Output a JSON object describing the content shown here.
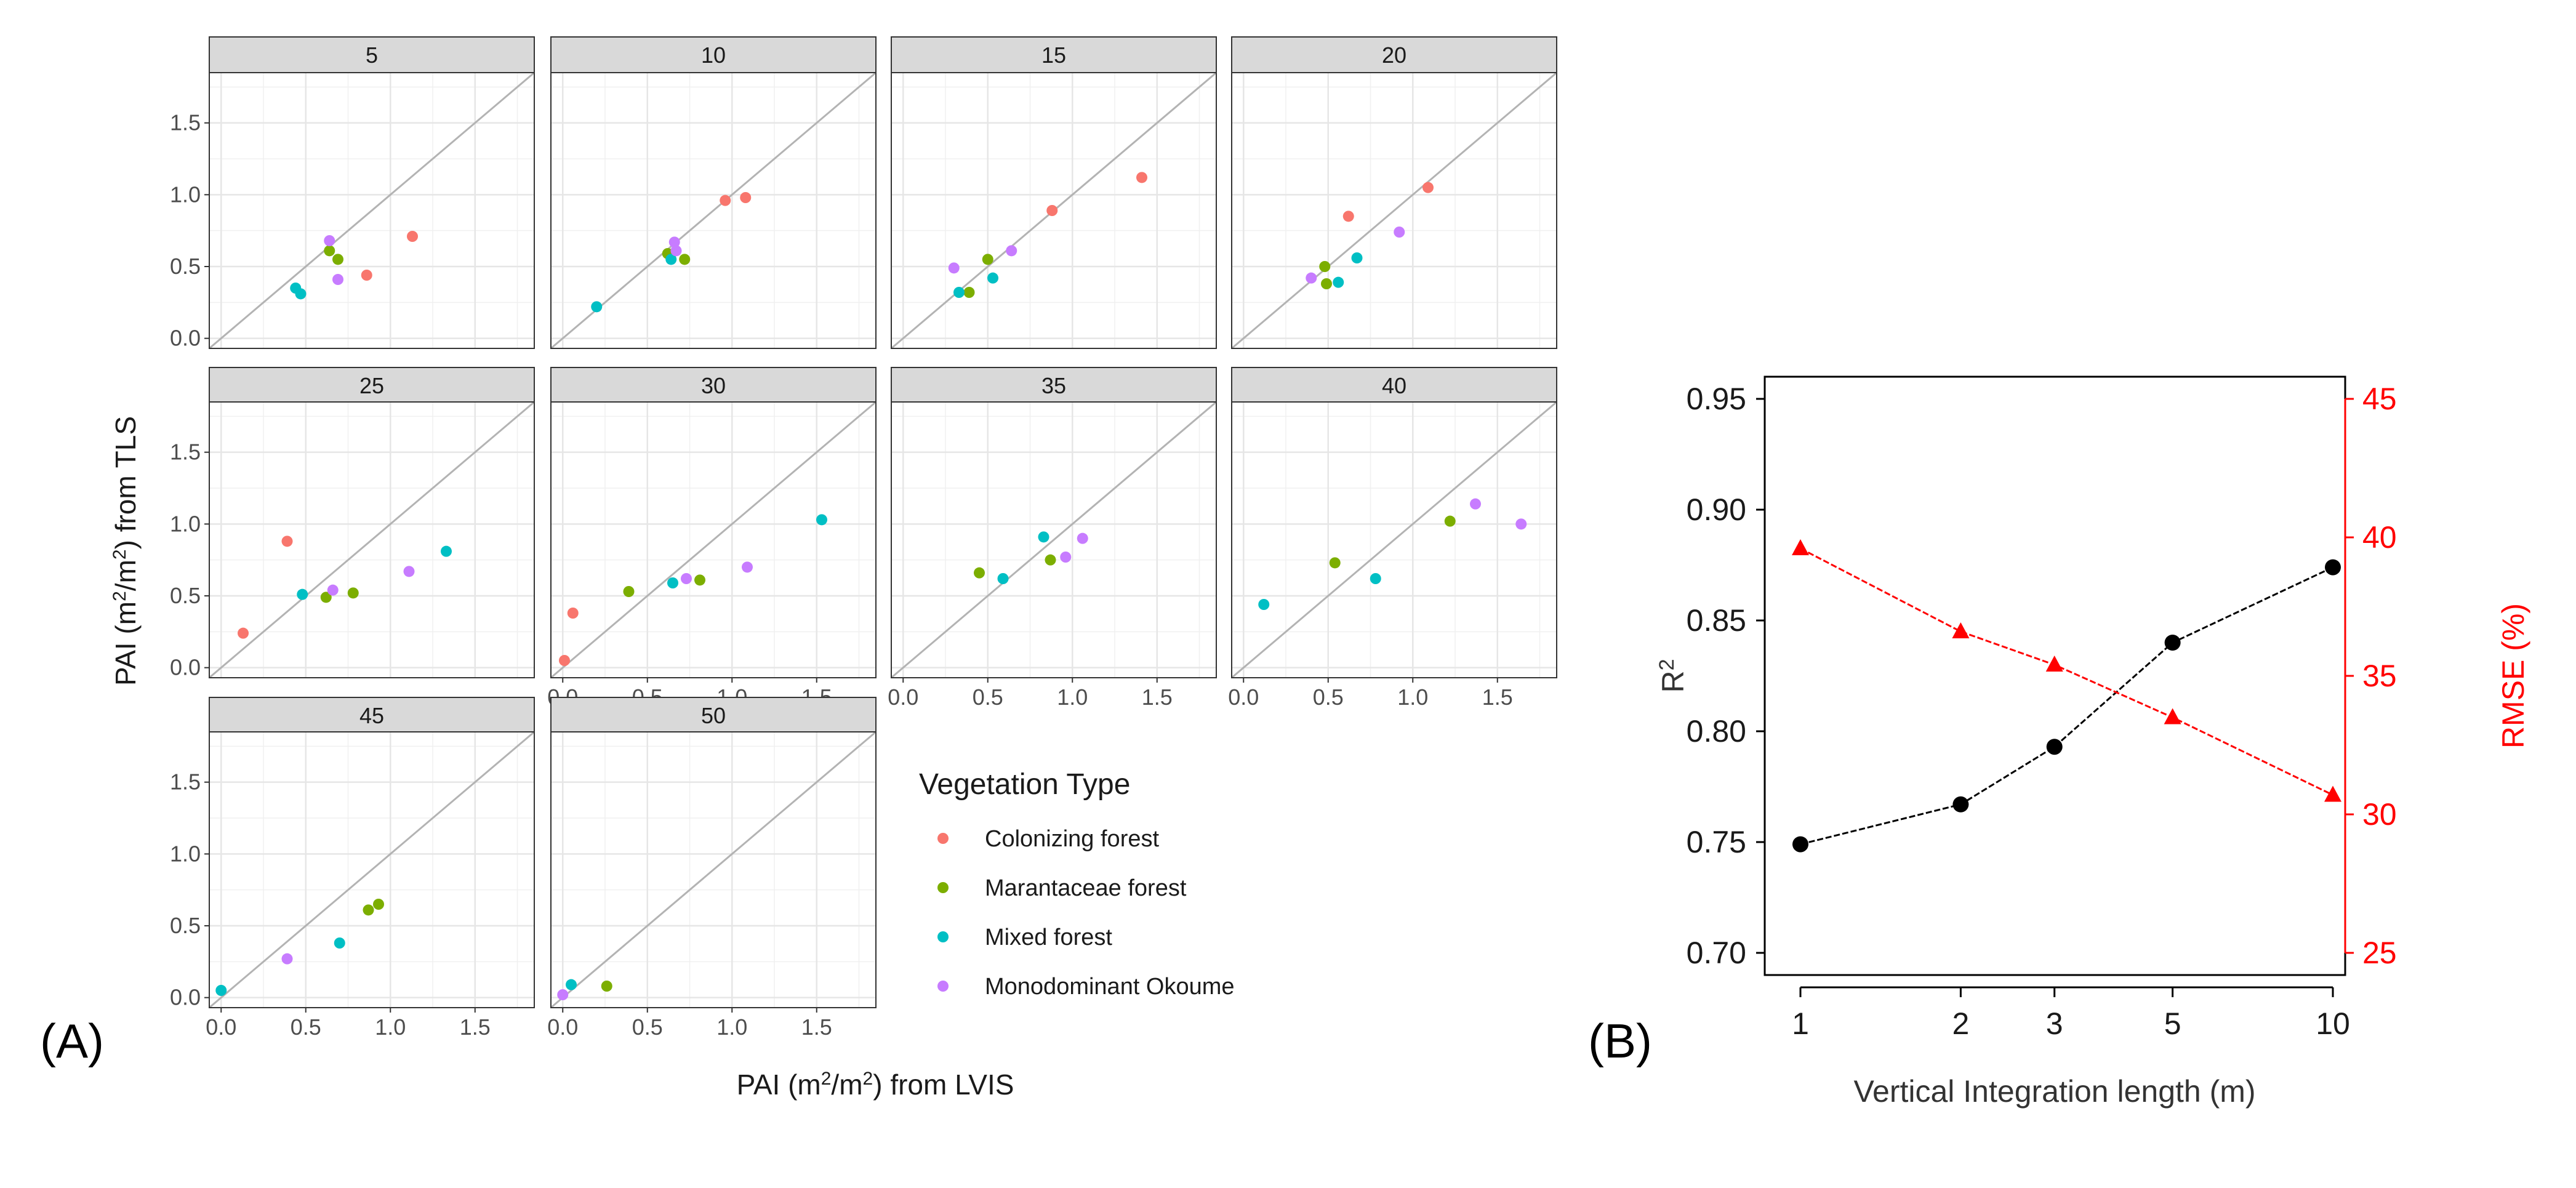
{
  "labels": {
    "panel_a": "(A)",
    "panel_b": "(B)"
  },
  "colors": {
    "Colonizing forest": "#F8766D",
    "Marantaceae forest": "#7CAE00",
    "Mixed forest": "#00BFC4",
    "Monodominant Okoume": "#C77CFF",
    "r2_series": "#000000",
    "rmse_series": "#ff0000"
  },
  "chart_data": [
    {
      "type": "scatter",
      "xlabel_parts": [
        "PAI (m",
        "2",
        "/m",
        "2",
        ") from LVIS"
      ],
      "ylabel_parts": [
        "PAI (m",
        "2",
        "/m",
        "2",
        ") from TLS"
      ],
      "xlim": [
        -0.07,
        1.85
      ],
      "ylim": [
        -0.07,
        1.85
      ],
      "x_ticks": [
        "0.0",
        "0.5",
        "1.0",
        "1.5"
      ],
      "y_ticks": [
        "0.0",
        "0.5",
        "1.0",
        "1.5"
      ],
      "reference_line": "1:1",
      "grid": true,
      "legend": {
        "title": "Vegetation Type",
        "entries": [
          "Colonizing forest",
          "Marantaceae forest",
          "Mixed forest",
          "Monodominant Okoume"
        ]
      },
      "facets": [
        {
          "label": "5",
          "points": [
            {
              "x": 1.13,
              "y": 0.71,
              "type": "Colonizing forest"
            },
            {
              "x": 0.86,
              "y": 0.44,
              "type": "Colonizing forest"
            },
            {
              "x": 0.64,
              "y": 0.61,
              "type": "Marantaceae forest"
            },
            {
              "x": 0.69,
              "y": 0.55,
              "type": "Marantaceae forest"
            },
            {
              "x": 0.44,
              "y": 0.35,
              "type": "Mixed forest"
            },
            {
              "x": 0.47,
              "y": 0.31,
              "type": "Mixed forest"
            },
            {
              "x": 0.64,
              "y": 0.68,
              "type": "Monodominant Okoume"
            },
            {
              "x": 0.69,
              "y": 0.41,
              "type": "Monodominant Okoume"
            }
          ]
        },
        {
          "label": "10",
          "points": [
            {
              "x": 0.96,
              "y": 0.96,
              "type": "Colonizing forest"
            },
            {
              "x": 1.08,
              "y": 0.98,
              "type": "Colonizing forest"
            },
            {
              "x": 0.62,
              "y": 0.59,
              "type": "Marantaceae forest"
            },
            {
              "x": 0.72,
              "y": 0.55,
              "type": "Marantaceae forest"
            },
            {
              "x": 0.2,
              "y": 0.22,
              "type": "Mixed forest"
            },
            {
              "x": 0.64,
              "y": 0.55,
              "type": "Mixed forest"
            },
            {
              "x": 0.66,
              "y": 0.67,
              "type": "Monodominant Okoume"
            },
            {
              "x": 0.67,
              "y": 0.61,
              "type": "Monodominant Okoume"
            }
          ]
        },
        {
          "label": "15",
          "points": [
            {
              "x": 0.88,
              "y": 0.89,
              "type": "Colonizing forest"
            },
            {
              "x": 1.41,
              "y": 1.12,
              "type": "Colonizing forest"
            },
            {
              "x": 0.5,
              "y": 0.55,
              "type": "Marantaceae forest"
            },
            {
              "x": 0.39,
              "y": 0.32,
              "type": "Marantaceae forest"
            },
            {
              "x": 0.33,
              "y": 0.32,
              "type": "Mixed forest"
            },
            {
              "x": 0.53,
              "y": 0.42,
              "type": "Mixed forest"
            },
            {
              "x": 0.3,
              "y": 0.49,
              "type": "Monodominant Okoume"
            },
            {
              "x": 0.64,
              "y": 0.61,
              "type": "Monodominant Okoume"
            }
          ]
        },
        {
          "label": "20",
          "points": [
            {
              "x": 0.62,
              "y": 0.85,
              "type": "Colonizing forest"
            },
            {
              "x": 1.09,
              "y": 1.05,
              "type": "Colonizing forest"
            },
            {
              "x": 0.48,
              "y": 0.5,
              "type": "Marantaceae forest"
            },
            {
              "x": 0.49,
              "y": 0.38,
              "type": "Marantaceae forest"
            },
            {
              "x": 0.56,
              "y": 0.39,
              "type": "Mixed forest"
            },
            {
              "x": 0.67,
              "y": 0.56,
              "type": "Mixed forest"
            },
            {
              "x": 0.4,
              "y": 0.42,
              "type": "Monodominant Okoume"
            },
            {
              "x": 0.92,
              "y": 0.74,
              "type": "Monodominant Okoume"
            }
          ]
        },
        {
          "label": "25",
          "points": [
            {
              "x": 0.39,
              "y": 0.88,
              "type": "Colonizing forest"
            },
            {
              "x": 0.13,
              "y": 0.24,
              "type": "Colonizing forest"
            },
            {
              "x": 0.62,
              "y": 0.49,
              "type": "Marantaceae forest"
            },
            {
              "x": 0.78,
              "y": 0.52,
              "type": "Marantaceae forest"
            },
            {
              "x": 0.48,
              "y": 0.51,
              "type": "Mixed forest"
            },
            {
              "x": 1.33,
              "y": 0.81,
              "type": "Mixed forest"
            },
            {
              "x": 0.66,
              "y": 0.54,
              "type": "Monodominant Okoume"
            },
            {
              "x": 1.11,
              "y": 0.67,
              "type": "Monodominant Okoume"
            }
          ]
        },
        {
          "label": "30",
          "points": [
            {
              "x": 0.01,
              "y": 0.05,
              "type": "Colonizing forest"
            },
            {
              "x": 0.06,
              "y": 0.38,
              "type": "Colonizing forest"
            },
            {
              "x": 0.39,
              "y": 0.53,
              "type": "Marantaceae forest"
            },
            {
              "x": 0.81,
              "y": 0.61,
              "type": "Marantaceae forest"
            },
            {
              "x": 0.65,
              "y": 0.59,
              "type": "Mixed forest"
            },
            {
              "x": 1.53,
              "y": 1.03,
              "type": "Mixed forest"
            },
            {
              "x": 0.73,
              "y": 0.62,
              "type": "Monodominant Okoume"
            },
            {
              "x": 1.09,
              "y": 0.7,
              "type": "Monodominant Okoume"
            }
          ]
        },
        {
          "label": "35",
          "points": [
            {
              "x": 0.45,
              "y": 0.66,
              "type": "Marantaceae forest"
            },
            {
              "x": 0.87,
              "y": 0.75,
              "type": "Marantaceae forest"
            },
            {
              "x": 0.59,
              "y": 0.62,
              "type": "Mixed forest"
            },
            {
              "x": 0.83,
              "y": 0.91,
              "type": "Mixed forest"
            },
            {
              "x": 0.96,
              "y": 0.77,
              "type": "Monodominant Okoume"
            },
            {
              "x": 1.06,
              "y": 0.9,
              "type": "Monodominant Okoume"
            }
          ]
        },
        {
          "label": "40",
          "points": [
            {
              "x": 0.54,
              "y": 0.73,
              "type": "Marantaceae forest"
            },
            {
              "x": 1.22,
              "y": 1.02,
              "type": "Marantaceae forest"
            },
            {
              "x": 0.12,
              "y": 0.44,
              "type": "Mixed forest"
            },
            {
              "x": 0.78,
              "y": 0.62,
              "type": "Mixed forest"
            },
            {
              "x": 1.37,
              "y": 1.14,
              "type": "Monodominant Okoume"
            },
            {
              "x": 1.64,
              "y": 1.0,
              "type": "Monodominant Okoume"
            }
          ]
        },
        {
          "label": "45",
          "points": [
            {
              "x": 0.87,
              "y": 0.61,
              "type": "Marantaceae forest"
            },
            {
              "x": 0.93,
              "y": 0.65,
              "type": "Marantaceae forest"
            },
            {
              "x": 0.0,
              "y": 0.05,
              "type": "Mixed forest"
            },
            {
              "x": 0.7,
              "y": 0.38,
              "type": "Mixed forest"
            },
            {
              "x": 0.39,
              "y": 0.27,
              "type": "Monodominant Okoume"
            }
          ]
        },
        {
          "label": "50",
          "points": [
            {
              "x": 0.26,
              "y": 0.08,
              "type": "Marantaceae forest"
            },
            {
              "x": 0.05,
              "y": 0.09,
              "type": "Mixed forest"
            },
            {
              "x": 0.0,
              "y": 0.02,
              "type": "Monodominant Okoume"
            }
          ]
        }
      ]
    },
    {
      "type": "line",
      "xlabel": "Vertical Integration length (m)",
      "ylabel_left_parts": [
        "R",
        "2"
      ],
      "ylabel_right": "RMSE (%)",
      "x_scale": "log",
      "x": [
        1,
        2,
        3,
        5,
        10
      ],
      "x_ticks": [
        "1",
        "2",
        "3",
        "5",
        "10"
      ],
      "ylim_left": [
        0.69,
        0.96
      ],
      "y_ticks_left": [
        "0.70",
        "0.75",
        "0.80",
        "0.85",
        "0.90",
        "0.95"
      ],
      "ylim_right": [
        24.2,
        45.8
      ],
      "y_ticks_right": [
        "25",
        "30",
        "35",
        "40",
        "45"
      ],
      "series": [
        {
          "axis": "left",
          "marker": "circle",
          "values": [
            0.749,
            0.767,
            0.793,
            0.84,
            0.874
          ]
        },
        {
          "axis": "right",
          "marker": "triangle",
          "values": [
            39.6,
            36.6,
            35.4,
            33.5,
            30.7
          ]
        }
      ]
    }
  ]
}
